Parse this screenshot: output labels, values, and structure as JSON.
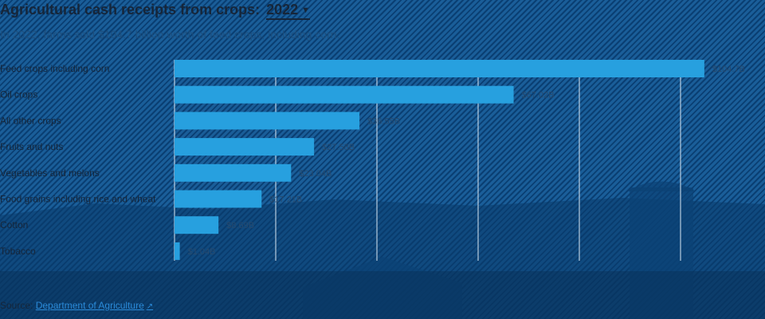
{
  "header": {
    "title": "Agricultural cash receipts from crops:",
    "year": "2022",
    "subtitle": "In 2022, farms sold $104.7 billion worth of feed crops, including corn."
  },
  "source": {
    "label": "Source:",
    "link_text": "Department of Agriculture",
    "icon": "external-link-icon"
  },
  "colors": {
    "bar": "#27a0df",
    "background": "#0b4f8c"
  },
  "chart_data": {
    "type": "bar",
    "orientation": "horizontal",
    "categories": [
      "Feed crops including corn",
      "Oil crops",
      "All other crops",
      "Fruits and nuts",
      "Vegetables and melons",
      "Food grains including rice and wheat",
      "Cotton",
      "Tobacco"
    ],
    "values": [
      104.7,
      67.02,
      36.55,
      27.58,
      23.04,
      17.21,
      8.69,
      1.04
    ],
    "value_labels": [
      "$104.7B",
      "$67.02B",
      "$36.55B",
      "$27.58B",
      "$23.04B",
      "$17.21B",
      "$8.69B",
      "$1.04B"
    ],
    "xlim": [
      0,
      120
    ],
    "grid": true
  }
}
